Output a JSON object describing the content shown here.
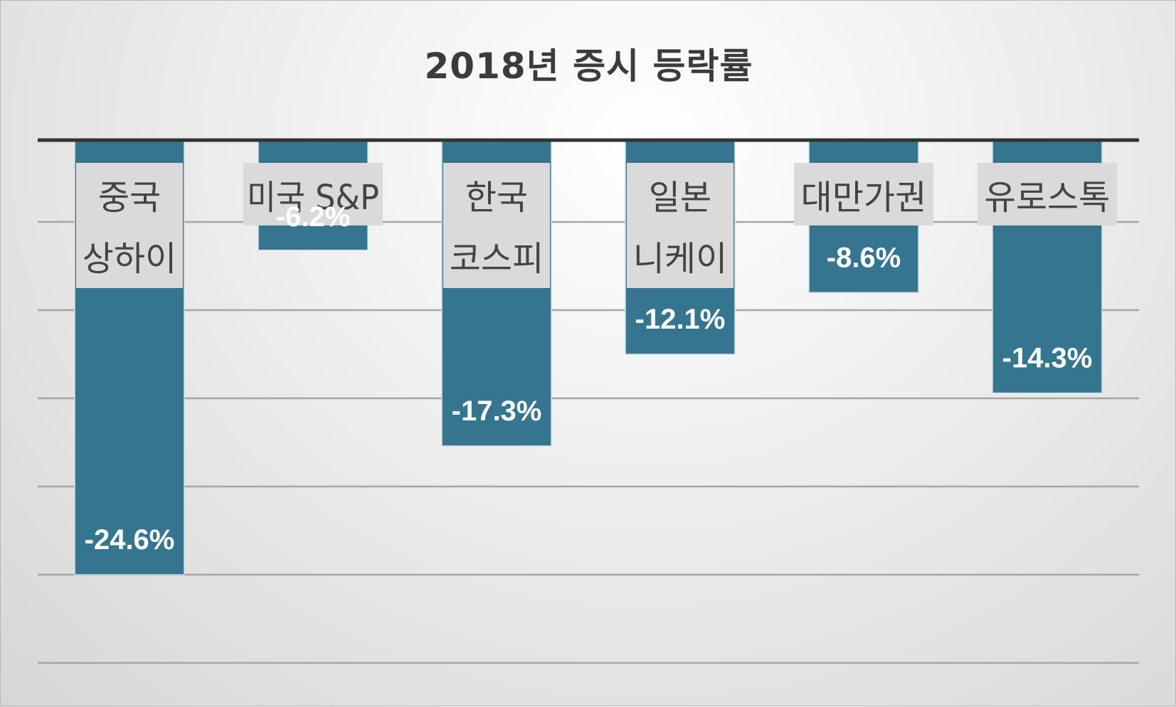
{
  "chart_data": {
    "type": "bar",
    "title": "2018년 증시 등락률",
    "categories": [
      [
        "중국",
        "상하이"
      ],
      [
        "미국 S&P"
      ],
      [
        "한국",
        "코스피"
      ],
      [
        "일본",
        "니케이"
      ],
      [
        "대만가권"
      ],
      [
        "유로스톡"
      ]
    ],
    "values": [
      -24.6,
      -6.2,
      -17.3,
      -12.1,
      -8.6,
      -14.3
    ],
    "value_labels": [
      "-24.6%",
      "-6.2%",
      "-17.3%",
      "-12.1%",
      "-8.6%",
      "-14.3%"
    ],
    "ylim": [
      -30,
      0
    ],
    "grid": true,
    "legend": "none",
    "colors": {
      "bar": "#36758f",
      "bar_edge": "#cfe0e8",
      "label_box": "#dadada",
      "axis": "#333333",
      "grid": "#a6a6a6",
      "value_text_inside": "#ffffff",
      "value_text_outside": "#111111"
    }
  }
}
